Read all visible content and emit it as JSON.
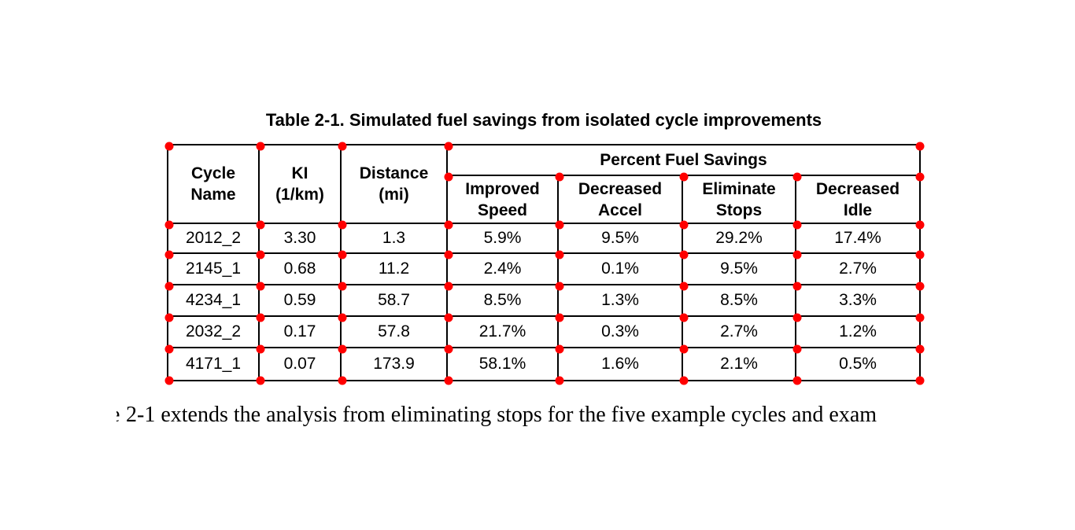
{
  "page": {
    "background_color": "#ffffff"
  },
  "caption": "Table 2-1. Simulated fuel savings from isolated cycle improvements",
  "table": {
    "span_header": "Percent Fuel Savings",
    "col_headers": {
      "cycle_name": "Cycle\nName",
      "ki": "KI\n(1/km)",
      "distance": "Distance\n(mi)"
    },
    "sub_headers": {
      "improved_speed": "Improved\nSpeed",
      "decreased_accel": "Decreased\nAccel",
      "eliminate_stops": "Eliminate\nStops",
      "decreased_idle": "Decreased\nIdle"
    },
    "rows": [
      {
        "cycle": "2012_2",
        "ki": "3.30",
        "distance": "1.3",
        "improved_speed": "5.9%",
        "decreased_accel": "9.5%",
        "eliminate_stops": "29.2%",
        "decreased_idle": "17.4%"
      },
      {
        "cycle": "2145_1",
        "ki": "0.68",
        "distance": "11.2",
        "improved_speed": "2.4%",
        "decreased_accel": "0.1%",
        "eliminate_stops": "9.5%",
        "decreased_idle": "2.7%"
      },
      {
        "cycle": "4234_1",
        "ki": "0.59",
        "distance": "58.7",
        "improved_speed": "8.5%",
        "decreased_accel": "1.3%",
        "eliminate_stops": "8.5%",
        "decreased_idle": "3.3%"
      },
      {
        "cycle": "2032_2",
        "ki": "0.17",
        "distance": "57.8",
        "improved_speed": "21.7%",
        "decreased_accel": "0.3%",
        "eliminate_stops": "2.7%",
        "decreased_idle": "1.2%"
      },
      {
        "cycle": "4171_1",
        "ki": "0.07",
        "distance": "173.9",
        "improved_speed": "58.1%",
        "decreased_accel": "1.6%",
        "eliminate_stops": "2.1%",
        "decreased_idle": "0.5%"
      }
    ]
  },
  "body_text": {
    "clipped_prefix": "e",
    "text": "2-1 extends the analysis from eliminating stops for the five example cycles and exam"
  },
  "annotations": {
    "marker_color": "#ff0000",
    "border_color": "#000000",
    "text_color": "#000000"
  }
}
